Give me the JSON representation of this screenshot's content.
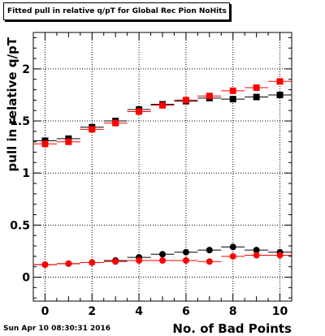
{
  "chart_data": {
    "type": "scatter",
    "title": "Fitted pull in relative q/pT for Global Rec Pion NoHits",
    "xlabel": "No. of Bad Points",
    "ylabel": "pull in relative q/pT",
    "xlim": [
      -0.5,
      10.5
    ],
    "ylim": [
      -0.23,
      2.35
    ],
    "grid": true,
    "x_ticks": [
      0,
      2,
      4,
      6,
      8,
      10
    ],
    "y_ticks": [
      0,
      0.5,
      1,
      1.5,
      2
    ],
    "y_tick_labels": [
      "0",
      "0.5",
      "1",
      "1.5",
      "2"
    ],
    "x": [
      0,
      1,
      2,
      3,
      4,
      5,
      6,
      7,
      8,
      9,
      10
    ],
    "series": [
      {
        "marker": "square",
        "color": "#000000",
        "values": [
          1.31,
          1.33,
          1.44,
          1.5,
          1.61,
          1.66,
          1.69,
          1.72,
          1.71,
          1.73,
          1.75
        ]
      },
      {
        "marker": "square",
        "color": "#ff0000",
        "values": [
          1.28,
          1.3,
          1.42,
          1.48,
          1.59,
          1.65,
          1.7,
          1.74,
          1.79,
          1.82,
          1.88
        ]
      },
      {
        "marker": "circle",
        "color": "#000000",
        "values": [
          0.12,
          0.13,
          0.14,
          0.16,
          0.19,
          0.22,
          0.24,
          0.26,
          0.29,
          0.26,
          0.24
        ]
      },
      {
        "marker": "circle",
        "color": "#ff0000",
        "values": [
          0.12,
          0.13,
          0.14,
          0.15,
          0.16,
          0.16,
          0.16,
          0.15,
          0.2,
          0.21,
          0.21
        ]
      }
    ]
  },
  "timestamp": "Sun Apr 10 08:30:31 2016"
}
